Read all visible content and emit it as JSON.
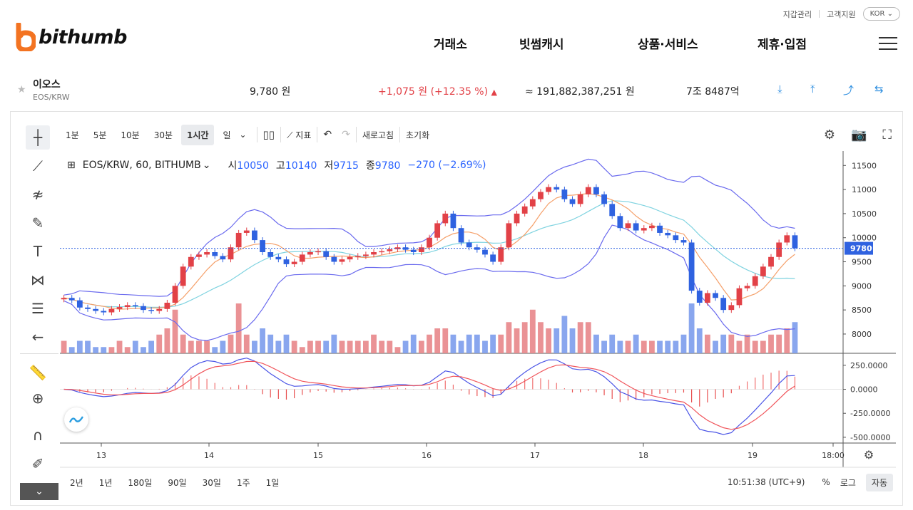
{
  "header": {
    "top_links": [
      "지갑관리",
      "고객지원"
    ],
    "lang": "KOR",
    "brand": "bithumb",
    "nav": [
      "거래소",
      "빗썸캐시",
      "상품·서비스",
      "제휴·입점"
    ]
  },
  "ticker": {
    "name": "이오스",
    "pair": "EOS/KRW",
    "price": "9,780 원",
    "change": "+1,075 원 (+12.35 %)",
    "volume": "≈ 191,882,387,251 원",
    "market_cap": "7조 8487억",
    "colors": {
      "up": "#e24147",
      "down": "#2f62e0",
      "accent": "#2f8fe0"
    }
  },
  "toolbar": {
    "timeframes": [
      "1분",
      "5분",
      "10분",
      "30분",
      "1시간",
      "일"
    ],
    "active_timeframe": "1시간",
    "indicator_label": "지표",
    "refresh_label": "새로고침",
    "reset_label": "초기화"
  },
  "chart_header": {
    "symbol": "EOS/KRW, 60, BITHUMB",
    "open_label": "시",
    "open": "10050",
    "high_label": "고",
    "high": "10140",
    "low_label": "저",
    "low": "9715",
    "close_label": "종",
    "close": "9780",
    "change": "−270 (−2.69%)"
  },
  "bottombar": {
    "ranges": [
      "2년",
      "1년",
      "180일",
      "90일",
      "30일",
      "1주",
      "1일"
    ],
    "time": "10:51:38 (UTC+9)",
    "percent": "%",
    "log": "로그",
    "auto": "자동"
  },
  "chart_data": {
    "type": "candlestick",
    "title": "EOS/KRW, 60, BITHUMB",
    "x_ticks": [
      "13",
      "14",
      "15",
      "16",
      "17",
      "18",
      "19",
      "18:00"
    ],
    "y_ticks": [
      11500,
      11000,
      10500,
      10000,
      9500,
      9000,
      8500,
      8000
    ],
    "ylim": [
      7600,
      11800
    ],
    "last_price": 9780,
    "macd_ticks": [
      "250.0000",
      "0.0000",
      "-250.0000",
      "-500.0000"
    ],
    "macd_ylim": [
      -560,
      360
    ],
    "close_series": [
      8750,
      8700,
      8550,
      8520,
      8480,
      8450,
      8520,
      8560,
      8600,
      8580,
      8500,
      8480,
      8520,
      8650,
      9000,
      9400,
      9600,
      9650,
      9700,
      9620,
      9550,
      9800,
      10100,
      10150,
      9950,
      9700,
      9600,
      9550,
      9450,
      9500,
      9650,
      9700,
      9720,
      9600,
      9500,
      9550,
      9600,
      9620,
      9650,
      9700,
      9720,
      9760,
      9800,
      9750,
      9700,
      9800,
      10000,
      10300,
      10500,
      10200,
      9900,
      9800,
      9750,
      9650,
      9500,
      9800,
      10300,
      10500,
      10650,
      10800,
      10950,
      11050,
      11000,
      10800,
      10700,
      10900,
      11050,
      10900,
      10700,
      10450,
      10200,
      10300,
      10150,
      10200,
      10250,
      10100,
      10050,
      9950,
      9900,
      8900,
      8650,
      8850,
      8750,
      8500,
      8600,
      8950,
      9000,
      9200,
      9400,
      9600,
      9900,
      10050,
      9780
    ],
    "volume_series": [
      2,
      1,
      2,
      2,
      1,
      1,
      1,
      2,
      1,
      2,
      1,
      2,
      3,
      4,
      7,
      3,
      2,
      2,
      2,
      1,
      2,
      3,
      8,
      3,
      2,
      4,
      3,
      2,
      3,
      2,
      1,
      2,
      2,
      2,
      3,
      2,
      2,
      2,
      2,
      3,
      2,
      2,
      1,
      2,
      3,
      2,
      3,
      4,
      4,
      3,
      2,
      3,
      3,
      2,
      3,
      3,
      5,
      4,
      5,
      7,
      5,
      4,
      4,
      6,
      4,
      5,
      5,
      3,
      2,
      3,
      2,
      2,
      3,
      2,
      2,
      2,
      2,
      2,
      3,
      8,
      4,
      3,
      2,
      3,
      3,
      2,
      3,
      2,
      2,
      3,
      3,
      4,
      5
    ],
    "colors": {
      "up": "#e24147",
      "down": "#2f62e0",
      "bb_band": "#6a6aee",
      "ma_orange": "#f5a06a",
      "ma_cyan": "#7fd3e0",
      "macd_line": "#4b55e6",
      "signal_line": "#f0545a"
    }
  }
}
